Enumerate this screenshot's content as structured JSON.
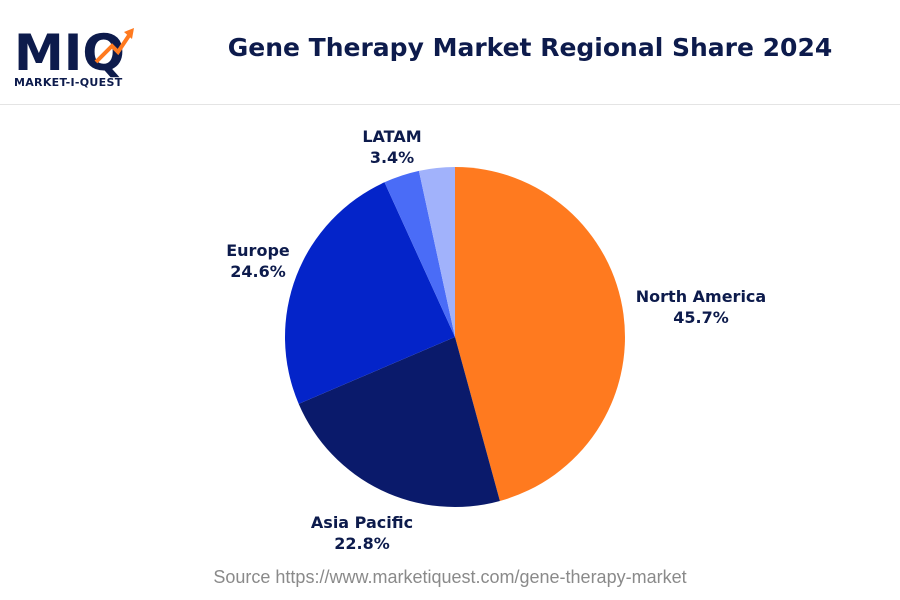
{
  "brand": {
    "logo_mark": "MIQ",
    "logo_text": "MARKET-I-QUEST"
  },
  "colors": {
    "navy": "#0d1b4c",
    "orange": "#ff7a1f"
  },
  "chart_data": {
    "type": "pie",
    "title": "Gene Therapy Market Regional Share 2024",
    "unit": "%",
    "start_angle_deg": 0,
    "direction": "clockwise",
    "slices": [
      {
        "label": "North America",
        "value": 45.7,
        "value_label": "45.7%",
        "color": "#ff7a1f"
      },
      {
        "label": "Asia Pacific",
        "value": 22.8,
        "value_label": "22.8%",
        "color": "#0a1a6b"
      },
      {
        "label": "Europe",
        "value": 24.6,
        "value_label": "24.6%",
        "color": "#0424c9"
      },
      {
        "label": "",
        "value": 3.4,
        "value_label": "",
        "color": "#4a6cf7"
      },
      {
        "label": "LATAM",
        "value": 3.4,
        "value_label": "3.4%",
        "color": "#a1b2fb"
      }
    ]
  },
  "source": "Source https://www.marketiquest.com/gene-therapy-market"
}
